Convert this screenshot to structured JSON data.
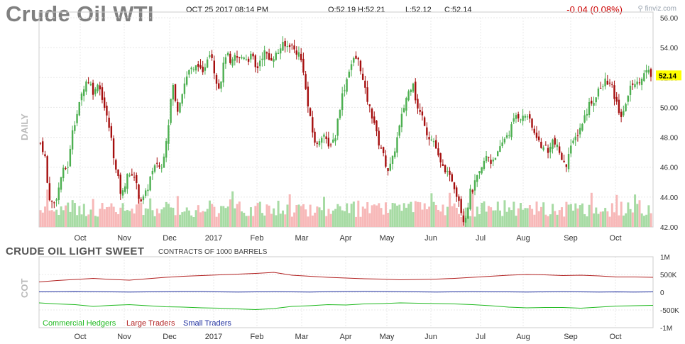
{
  "header": {
    "title": "Crude Oil WTI",
    "datetime": "OCT 25 2017 08:14 PM",
    "open": "O:52.19",
    "high": "H:52.21",
    "low": "L:52.12",
    "close": "C:52.14",
    "change": "-0.04 (0.08%)",
    "logo": "finviz.com",
    "logo_icon": "magnifier-icon"
  },
  "chart_data": [
    {
      "type": "candlestick",
      "side_label": "DAILY",
      "ylim": [
        42,
        56
      ],
      "y_ticks": [
        "56.00",
        "54.00",
        "52.00",
        "50.00",
        "48.00",
        "46.00",
        "44.00",
        "42.00"
      ],
      "x_ticks": [
        "Oct",
        "Nov",
        "Dec",
        "2017",
        "Feb",
        "Mar",
        "Apr",
        "May",
        "Jun",
        "Jul",
        "Aug",
        "Sep",
        "Oct"
      ],
      "last_price": "52.14",
      "colors": {
        "up": "#4caf50",
        "down": "#a50e0e",
        "vol_up": "#a7dba4",
        "vol_down": "#f7b8b8",
        "last": "#ffff00"
      },
      "close_path": [
        [
          0,
          47.6
        ],
        [
          6,
          46.9
        ],
        [
          11,
          44.2
        ],
        [
          18,
          43.4
        ],
        [
          25,
          44.4
        ],
        [
          30,
          45.6
        ],
        [
          35,
          45.9
        ],
        [
          40,
          46.2
        ],
        [
          45,
          48.6
        ],
        [
          50,
          49.3
        ],
        [
          55,
          50.2
        ],
        [
          60,
          51.3
        ],
        [
          66,
          51.9
        ],
        [
          72,
          51.4
        ],
        [
          76,
          50.8
        ],
        [
          80,
          51.8
        ],
        [
          86,
          50.9
        ],
        [
          92,
          49.6
        ],
        [
          98,
          48.4
        ],
        [
          102,
          47.2
        ],
        [
          106,
          45.8
        ],
        [
          110,
          45.1
        ],
        [
          114,
          44.0
        ],
        [
          118,
          44.6
        ],
        [
          122,
          45.7
        ],
        [
          126,
          45.2
        ],
        [
          130,
          45.8
        ],
        [
          135,
          44.8
        ],
        [
          140,
          43.8
        ],
        [
          145,
          43.9
        ],
        [
          150,
          44.4
        ],
        [
          155,
          45.4
        ],
        [
          160,
          45.8
        ],
        [
          165,
          46.4
        ],
        [
          170,
          45.7
        ],
        [
          175,
          47.3
        ],
        [
          180,
          48.8
        ],
        [
          186,
          51.7
        ],
        [
          192,
          49.7
        ],
        [
          198,
          50.8
        ],
        [
          204,
          51.8
        ],
        [
          210,
          52.6
        ],
        [
          216,
          52.4
        ],
        [
          222,
          53.0
        ],
        [
          228,
          52.0
        ],
        [
          234,
          53.3
        ],
        [
          240,
          53.9
        ],
        [
          246,
          52.1
        ],
        [
          252,
          51.3
        ],
        [
          257,
          52.6
        ],
        [
          262,
          53.8
        ],
        [
          268,
          52.7
        ],
        [
          274,
          53.4
        ],
        [
          280,
          53.2
        ],
        [
          286,
          53.5
        ],
        [
          292,
          53.2
        ],
        [
          298,
          53.5
        ],
        [
          304,
          52.4
        ],
        [
          310,
          53.3
        ],
        [
          316,
          53.7
        ],
        [
          322,
          53.2
        ],
        [
          328,
          53.4
        ],
        [
          334,
          53.6
        ],
        [
          340,
          54.2
        ],
        [
          346,
          54.0
        ],
        [
          352,
          54.3
        ],
        [
          358,
          53.8
        ],
        [
          364,
          53.6
        ],
        [
          370,
          52.7
        ],
        [
          375,
          50.6
        ],
        [
          380,
          49.2
        ],
        [
          385,
          47.9
        ],
        [
          390,
          47.4
        ],
        [
          395,
          48.2
        ],
        [
          400,
          48.2
        ],
        [
          405,
          47.2
        ],
        [
          410,
          47.8
        ],
        [
          415,
          47.9
        ],
        [
          420,
          49.6
        ],
        [
          425,
          50.8
        ],
        [
          430,
          51.6
        ],
        [
          435,
          52.6
        ],
        [
          440,
          53.1
        ],
        [
          445,
          53.3
        ],
        [
          450,
          52.9
        ],
        [
          455,
          51.5
        ],
        [
          460,
          50.6
        ],
        [
          465,
          49.7
        ],
        [
          470,
          49.1
        ],
        [
          475,
          47.8
        ],
        [
          480,
          47.3
        ],
        [
          485,
          46.4
        ],
        [
          490,
          45.8
        ],
        [
          495,
          46.3
        ],
        [
          500,
          47.4
        ],
        [
          505,
          48.5
        ],
        [
          510,
          49.6
        ],
        [
          515,
          50.6
        ],
        [
          520,
          51.2
        ],
        [
          525,
          51.8
        ],
        [
          530,
          50.0
        ],
        [
          535,
          49.6
        ],
        [
          540,
          49.2
        ],
        [
          545,
          48.2
        ],
        [
          550,
          47.9
        ],
        [
          555,
          47.7
        ],
        [
          560,
          46.7
        ],
        [
          565,
          46.0
        ],
        [
          570,
          45.9
        ],
        [
          575,
          45.3
        ],
        [
          580,
          45.2
        ],
        [
          585,
          44.4
        ],
        [
          590,
          43.8
        ],
        [
          595,
          42.5
        ],
        [
          600,
          42.8
        ],
        [
          605,
          44.3
        ],
        [
          610,
          44.6
        ],
        [
          615,
          45.3
        ],
        [
          620,
          45.6
        ],
        [
          625,
          46.4
        ],
        [
          630,
          46.8
        ],
        [
          635,
          46.3
        ],
        [
          640,
          46.8
        ],
        [
          645,
          46.9
        ],
        [
          650,
          47.5
        ],
        [
          655,
          48.1
        ],
        [
          660,
          48.3
        ],
        [
          665,
          48.9
        ],
        [
          670,
          49.5
        ],
        [
          675,
          49.4
        ],
        [
          680,
          49.3
        ],
        [
          685,
          49.6
        ],
        [
          690,
          48.9
        ],
        [
          695,
          48.3
        ],
        [
          700,
          48.1
        ],
        [
          705,
          47.2
        ],
        [
          710,
          47.6
        ],
        [
          715,
          46.9
        ],
        [
          720,
          47.9
        ],
        [
          725,
          47.5
        ],
        [
          730,
          47.1
        ],
        [
          735,
          46.5
        ],
        [
          740,
          45.9
        ],
        [
          745,
          47.4
        ],
        [
          750,
          47.5
        ],
        [
          755,
          48.1
        ],
        [
          760,
          48.6
        ],
        [
          765,
          49.2
        ],
        [
          770,
          49.8
        ],
        [
          775,
          50.5
        ],
        [
          780,
          50.3
        ],
        [
          785,
          51.3
        ],
        [
          790,
          51.1
        ],
        [
          795,
          51.8
        ],
        [
          800,
          51.7
        ],
        [
          805,
          51.3
        ],
        [
          810,
          50.4
        ],
        [
          815,
          49.8
        ],
        [
          820,
          49.2
        ],
        [
          825,
          50.5
        ],
        [
          830,
          51.1
        ],
        [
          835,
          51.8
        ],
        [
          840,
          51.5
        ],
        [
          845,
          52.0
        ],
        [
          850,
          52.2
        ],
        [
          855,
          52.4
        ],
        [
          860,
          52.1
        ]
      ]
    },
    {
      "type": "line",
      "title": "CRUDE OIL LIGHT SWEET",
      "unit_label": "CONTRACTS OF 1000 BARRELS",
      "side_label": "COT",
      "ylim": [
        -1000,
        1000
      ],
      "y_ticks": [
        "1M",
        "500K",
        "0",
        "-500K",
        "-1M"
      ],
      "x_ticks": [
        "Oct",
        "Nov",
        "Dec",
        "2017",
        "Feb",
        "Mar",
        "Apr",
        "May",
        "Jun",
        "Jul",
        "Aug",
        "Sep",
        "Oct"
      ],
      "series": [
        {
          "name": "Commercial Hedgers",
          "color": "#1fb91f",
          "values": [
            -300,
            -330,
            -350,
            -400,
            -370,
            -350,
            -380,
            -410,
            -420,
            -440,
            -450,
            -470,
            -490,
            -460,
            -400,
            -380,
            -350,
            -360,
            -330,
            -320,
            -300,
            -310,
            -320,
            -330,
            -350,
            -380,
            -420,
            -440,
            -430,
            -430,
            -450,
            -420,
            -390,
            -380,
            -370
          ]
        },
        {
          "name": "Large Traders",
          "color": "#b22222",
          "values": [
            290,
            330,
            360,
            390,
            360,
            340,
            380,
            420,
            450,
            470,
            490,
            510,
            530,
            560,
            480,
            450,
            420,
            400,
            380,
            370,
            350,
            360,
            370,
            390,
            420,
            450,
            480,
            500,
            490,
            470,
            480,
            460,
            430,
            430,
            420
          ]
        },
        {
          "name": "Small Traders",
          "color": "#1f2f9f",
          "values": [
            10,
            15,
            20,
            15,
            10,
            5,
            10,
            15,
            20,
            20,
            10,
            5,
            10,
            15,
            10,
            5,
            15,
            20,
            25,
            20,
            15,
            10,
            5,
            10,
            15,
            10,
            10,
            5,
            10,
            15,
            10,
            5,
            10,
            5,
            10
          ]
        }
      ]
    }
  ]
}
